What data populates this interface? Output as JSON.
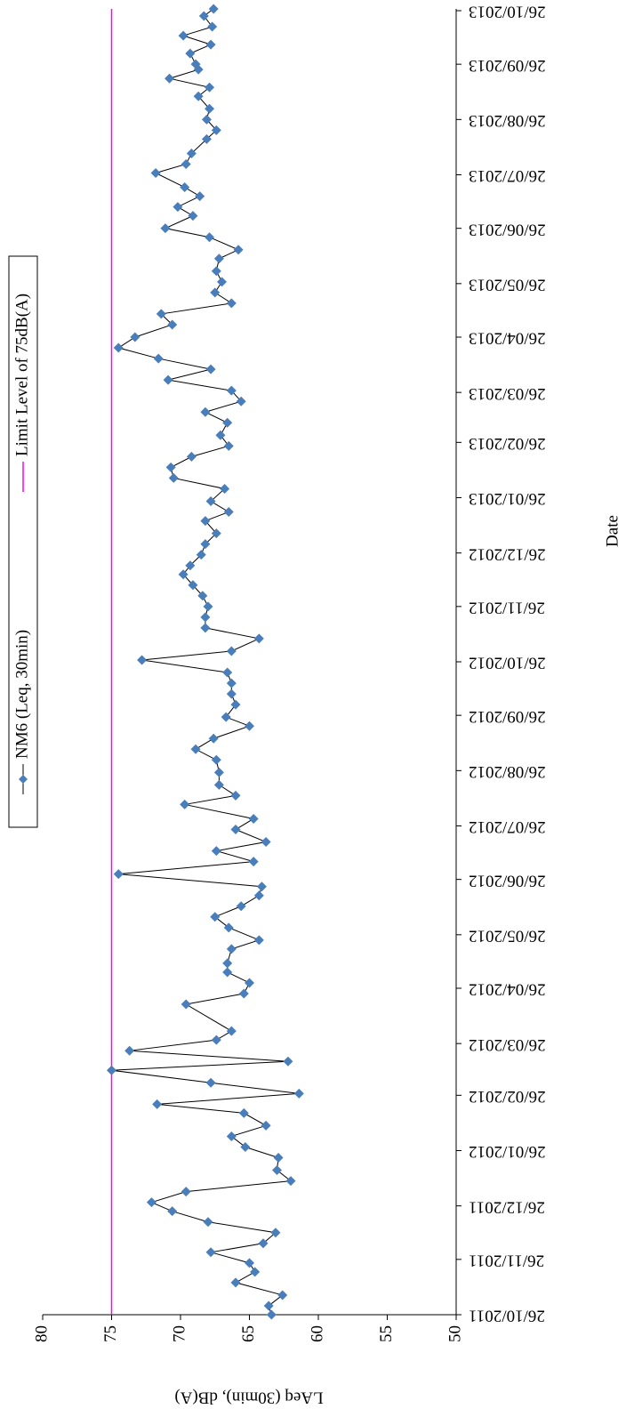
{
  "chart_data": {
    "type": "line",
    "x_title": "Date",
    "y_title": "LAeq (30min), dB(A)",
    "series": [
      {
        "name": "NM6 (Leq, 30min)",
        "color": "#4a7ebb",
        "line_color": "#000000",
        "x": [
          "2011-10-26",
          "2011-10-31",
          "2011-11-06",
          "2011-11-13",
          "2011-11-19",
          "2011-11-24",
          "2011-11-30",
          "2011-12-05",
          "2011-12-11",
          "2011-12-17",
          "2011-12-23",
          "2011-12-28",
          "2012-01-03",
          "2012-01-09",
          "2012-01-15",
          "2012-01-22",
          "2012-01-28",
          "2012-02-03",
          "2012-02-09",
          "2012-02-16",
          "2012-02-21",
          "2012-02-27",
          "2012-03-04",
          "2012-03-11",
          "2012-03-16",
          "2012-03-22",
          "2012-03-28",
          "2012-04-02",
          "2012-04-17",
          "2012-04-23",
          "2012-04-29",
          "2012-05-05",
          "2012-05-10",
          "2012-05-18",
          "2012-05-23",
          "2012-05-30",
          "2012-06-05",
          "2012-06-11",
          "2012-06-17",
          "2012-06-22",
          "2012-06-29",
          "2012-07-06",
          "2012-07-12",
          "2012-07-17",
          "2012-07-24",
          "2012-07-30",
          "2012-08-07",
          "2012-08-12",
          "2012-08-18",
          "2012-08-25",
          "2012-09-01",
          "2012-09-07",
          "2012-09-13",
          "2012-09-20",
          "2012-09-25",
          "2012-10-02",
          "2012-10-08",
          "2012-10-14",
          "2012-10-20",
          "2012-10-27",
          "2012-11-01",
          "2012-11-08",
          "2012-11-14",
          "2012-11-20",
          "2012-11-26",
          "2012-12-02",
          "2012-12-08",
          "2012-12-14",
          "2012-12-19",
          "2012-12-25",
          "2012-12-31",
          "2013-01-06",
          "2013-01-13",
          "2013-01-18",
          "2013-01-24",
          "2013-01-31",
          "2013-02-06",
          "2013-02-12",
          "2013-02-18",
          "2013-02-24",
          "2013-03-02",
          "2013-03-09",
          "2013-03-15",
          "2013-03-21",
          "2013-03-27",
          "2013-04-02",
          "2013-04-08",
          "2013-04-14",
          "2013-04-20",
          "2013-04-26",
          "2013-05-03",
          "2013-05-09",
          "2013-05-15",
          "2013-05-21",
          "2013-05-27",
          "2013-06-02",
          "2013-06-09",
          "2013-06-14",
          "2013-06-21",
          "2013-06-26",
          "2013-07-03",
          "2013-07-08",
          "2013-07-14",
          "2013-07-19",
          "2013-07-27",
          "2013-08-01",
          "2013-08-07",
          "2013-08-15",
          "2013-08-20",
          "2013-08-26",
          "2013-09-01",
          "2013-09-08",
          "2013-09-13",
          "2013-09-18",
          "2013-09-23",
          "2013-09-26",
          "2013-10-02",
          "2013-10-07",
          "2013-10-12",
          "2013-10-17",
          "2013-10-23",
          "2013-10-27"
        ],
        "values": [
          63.4,
          63.6,
          62.6,
          66.0,
          64.6,
          65.0,
          67.8,
          64.0,
          63.1,
          68.0,
          70.6,
          72.1,
          69.6,
          62.0,
          63.0,
          62.9,
          65.3,
          66.3,
          63.8,
          65.4,
          71.7,
          61.4,
          67.8,
          75.0,
          62.2,
          73.7,
          67.4,
          66.3,
          69.6,
          65.4,
          65.0,
          66.6,
          66.6,
          66.3,
          64.3,
          66.5,
          67.5,
          65.6,
          64.3,
          64.1,
          74.5,
          64.7,
          67.4,
          63.8,
          66.0,
          64.7,
          69.7,
          66.0,
          67.2,
          67.2,
          67.4,
          68.9,
          67.6,
          65.0,
          66.7,
          66.0,
          66.3,
          66.3,
          66.6,
          72.8,
          66.3,
          64.3,
          68.2,
          68.2,
          68.0,
          68.4,
          69.1,
          69.8,
          69.3,
          68.5,
          68.2,
          67.4,
          68.2,
          66.5,
          67.8,
          66.8,
          70.5,
          70.7,
          69.2,
          66.5,
          67.1,
          66.6,
          68.2,
          65.6,
          66.3,
          70.9,
          67.8,
          71.6,
          74.5,
          73.3,
          70.6,
          71.4,
          66.3,
          67.5,
          67.0,
          67.4,
          67.2,
          65.8,
          67.9,
          71.1,
          69.1,
          70.2,
          68.6,
          69.7,
          71.8,
          69.6,
          69.2,
          68.1,
          67.4,
          68.1,
          67.9,
          68.7,
          67.9,
          70.8,
          68.7,
          68.9,
          69.3,
          67.8,
          69.8,
          67.7,
          68.3,
          67.6
        ]
      }
    ],
    "limit": {
      "name": "Limit Level of 75dB(A)",
      "value": 75,
      "color": "#ff00ff"
    },
    "xlim": [
      "2011-10-26",
      "2013-10-27"
    ],
    "xticks": [
      {
        "value": "2011-10-26",
        "label": "26/10/2011"
      },
      {
        "value": "2011-11-26",
        "label": "26/11/2011"
      },
      {
        "value": "2011-12-26",
        "label": "26/12/2011"
      },
      {
        "value": "2012-01-26",
        "label": "26/01/2012"
      },
      {
        "value": "2012-02-26",
        "label": "26/02/2012"
      },
      {
        "value": "2012-03-26",
        "label": "26/03/2012"
      },
      {
        "value": "2012-04-26",
        "label": "26/04/2012"
      },
      {
        "value": "2012-05-26",
        "label": "26/05/2012"
      },
      {
        "value": "2012-06-26",
        "label": "26/06/2012"
      },
      {
        "value": "2012-07-26",
        "label": "26/07/2012"
      },
      {
        "value": "2012-08-26",
        "label": "26/08/2012"
      },
      {
        "value": "2012-09-26",
        "label": "26/09/2012"
      },
      {
        "value": "2012-10-26",
        "label": "26/10/2012"
      },
      {
        "value": "2012-11-26",
        "label": "26/11/2012"
      },
      {
        "value": "2012-12-26",
        "label": "26/12/2012"
      },
      {
        "value": "2013-01-26",
        "label": "26/01/2013"
      },
      {
        "value": "2013-02-26",
        "label": "26/02/2013"
      },
      {
        "value": "2013-03-26",
        "label": "26/03/2013"
      },
      {
        "value": "2013-04-26",
        "label": "26/04/2013"
      },
      {
        "value": "2013-05-26",
        "label": "26/05/2013"
      },
      {
        "value": "2013-06-26",
        "label": "26/06/2013"
      },
      {
        "value": "2013-07-26",
        "label": "26/07/2013"
      },
      {
        "value": "2013-08-26",
        "label": "26/08/2013"
      },
      {
        "value": "2013-09-26",
        "label": "26/09/2013"
      },
      {
        "value": "2013-10-26",
        "label": "26/10/2013"
      }
    ],
    "ylim": [
      50,
      80
    ],
    "yticks": [
      50,
      55,
      60,
      65,
      70,
      75,
      80
    ]
  }
}
